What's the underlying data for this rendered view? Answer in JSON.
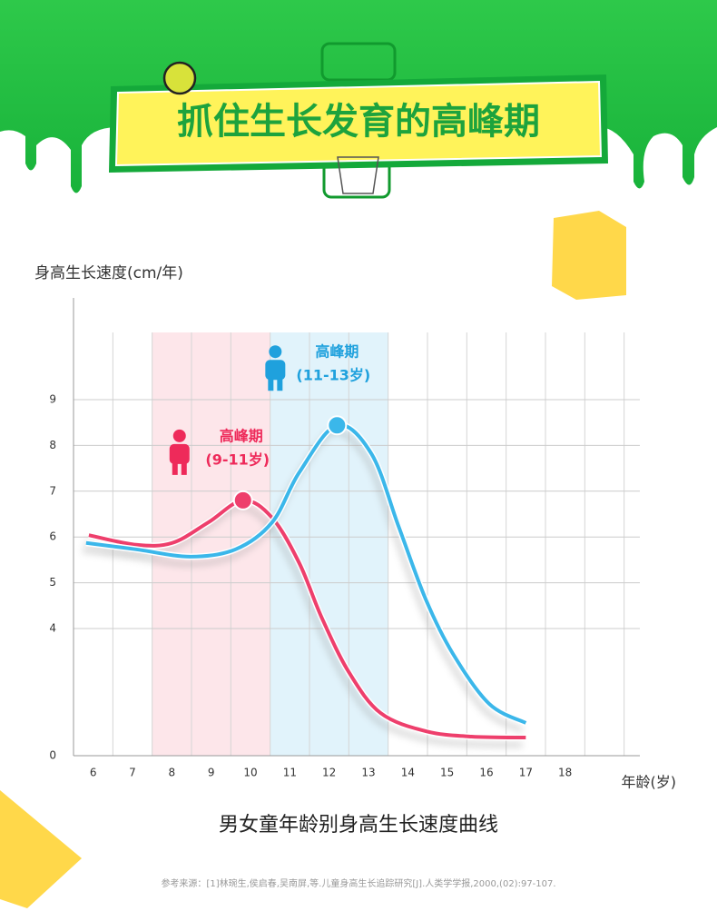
{
  "header": {
    "title": "抓住生长发育的高峰期"
  },
  "chart_data": {
    "type": "line",
    "ylabel": "身高生长速度(cm/年)",
    "xlabel": "年龄(岁)",
    "title": "男女童年龄别身高生长速度曲线",
    "xlim": [
      5.5,
      19.9
    ],
    "xticks": [
      6,
      7,
      8,
      9,
      10,
      11,
      12,
      13,
      14,
      15,
      16,
      17,
      18
    ],
    "ylim": [
      0,
      10.5
    ],
    "yticks": [
      0,
      4,
      5,
      6,
      7,
      8,
      9
    ],
    "axis_break": [
      0,
      4
    ],
    "grid": true,
    "spans": [
      {
        "from": 7.5,
        "to": 10.5,
        "color": "#fde6ea"
      },
      {
        "from": 10.5,
        "to": 13.5,
        "color": "#e1f3fb"
      }
    ],
    "series": [
      {
        "color": "#ee3f6c",
        "x": [
          5.89,
          7.09,
          8.01,
          8.93,
          9.81,
          10.55,
          11.24,
          11.81,
          12.5,
          13.31,
          14.46,
          15.62,
          17.0
        ],
        "values": [
          6.04,
          5.83,
          5.87,
          6.32,
          6.8,
          6.42,
          5.43,
          4.24,
          2.63,
          1.34,
          0.77,
          0.6,
          0.57
        ],
        "peak": 4
      },
      {
        "color": "#3bb7ea",
        "x": [
          5.82,
          7.09,
          8.47,
          9.62,
          10.55,
          11.24,
          12.2,
          13.08,
          13.77,
          14.46,
          15.15,
          16.07,
          17.0
        ],
        "values": [
          5.87,
          5.73,
          5.57,
          5.73,
          6.32,
          7.41,
          8.44,
          7.81,
          6.22,
          4.63,
          3.2,
          1.63,
          1.03
        ],
        "peak": 6
      }
    ],
    "annotations": [
      {
        "text": "高峰期",
        "sub": "(9-11岁)",
        "color": "#ee2a5a",
        "series": 0
      },
      {
        "text": "高峰期",
        "sub": "(11-13岁)",
        "color": "#1fa1dd",
        "series": 1
      }
    ]
  },
  "footnote": "参考来源：[1]林琬生,侯启春,吴南屏,等.儿童身高生长追踪研究[J].人类学学报,2000,(02):97-107."
}
